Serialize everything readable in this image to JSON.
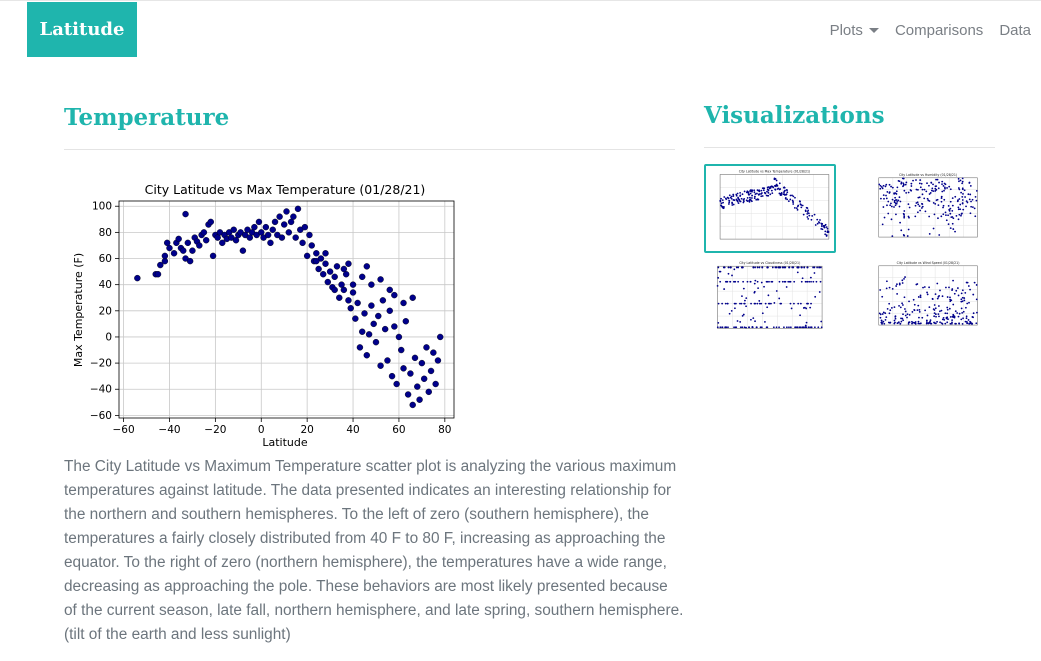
{
  "navbar": {
    "brand": "Latitude",
    "items": [
      {
        "label": "Plots",
        "dropdown": true
      },
      {
        "label": "Comparisons"
      },
      {
        "label": "Data"
      }
    ]
  },
  "main": {
    "title": "Temperature",
    "description": "The City Latitude vs Maximum Temperature scatter plot is analyzing the various maximum temperatures against latitude. The data presented indicates an interesting relationship for the northern and southern hemispheres. To the left of zero (southern hemisphere), the temperatures a fairly closely distributed from 40 F to 80 F, increasing as approaching the equator. To the right of zero (northern hemisphere), the temperatures have a wide range, decreasing as approaching the pole. These behaviors are most likely presented because of the current season, late fall, northern hemisphere, and late spring, southern hemisphere. (tilt of the earth and less sunlight)"
  },
  "sidebar": {
    "title": "Visualizations",
    "thumbnails": [
      {
        "title": "City Latitude vs Max Temperature (01/28/21)",
        "active": true
      },
      {
        "title": "City Latitude vs Humidity (01/28/21)",
        "active": false
      },
      {
        "title": "City Latitude vs Cloudiness (01/28/21)",
        "active": false
      },
      {
        "title": "City Latitude vs Wind Speed (01/28/21)",
        "active": false
      }
    ]
  },
  "colors": {
    "accent": "#1fb5ad",
    "marker": "#00008b"
  },
  "chart_data": {
    "type": "scatter",
    "title": "City Latitude vs Max Temperature (01/28/21)",
    "xlabel": "Latitude",
    "ylabel": "Max Temperature (F)",
    "xlim": [
      -62,
      84
    ],
    "ylim": [
      -62,
      104
    ],
    "xticks": [
      -60,
      -40,
      -20,
      0,
      20,
      40,
      60,
      80
    ],
    "yticks": [
      -60,
      -40,
      -20,
      0,
      20,
      40,
      60,
      80,
      100
    ],
    "xtick_labels": [
      "−60",
      "−40",
      "−20",
      "0",
      "20",
      "40",
      "60",
      "80"
    ],
    "ytick_labels": [
      "−60",
      "−40",
      "−20",
      "0",
      "20",
      "40",
      "60",
      "80",
      "100"
    ],
    "grid": true,
    "marker_color": "#00008b",
    "points": [
      [
        -54,
        45
      ],
      [
        -46,
        48
      ],
      [
        -45,
        48
      ],
      [
        -44,
        55
      ],
      [
        -42,
        58
      ],
      [
        -42,
        62
      ],
      [
        -41,
        72
      ],
      [
        -40,
        68
      ],
      [
        -38,
        64
      ],
      [
        -37,
        72
      ],
      [
        -36,
        75
      ],
      [
        -35,
        68
      ],
      [
        -34,
        66
      ],
      [
        -33,
        60
      ],
      [
        -33,
        94
      ],
      [
        -32,
        72
      ],
      [
        -31,
        58
      ],
      [
        -30,
        66
      ],
      [
        -29,
        76
      ],
      [
        -28,
        73
      ],
      [
        -27,
        70
      ],
      [
        -26,
        78
      ],
      [
        -25,
        80
      ],
      [
        -24,
        74
      ],
      [
        -23,
        86
      ],
      [
        -22,
        88
      ],
      [
        -21,
        62
      ],
      [
        -20,
        78
      ],
      [
        -19,
        76
      ],
      [
        -18,
        80
      ],
      [
        -17,
        72
      ],
      [
        -16,
        78
      ],
      [
        -15,
        75
      ],
      [
        -14,
        80
      ],
      [
        -13,
        76
      ],
      [
        -12,
        82
      ],
      [
        -11,
        74
      ],
      [
        -10,
        78
      ],
      [
        -9,
        80
      ],
      [
        -8,
        66
      ],
      [
        -7,
        78
      ],
      [
        -6,
        82
      ],
      [
        -5,
        76
      ],
      [
        -4,
        80
      ],
      [
        -3,
        84
      ],
      [
        -2,
        78
      ],
      [
        -1,
        88
      ],
      [
        0,
        80
      ],
      [
        1,
        76
      ],
      [
        2,
        84
      ],
      [
        3,
        78
      ],
      [
        4,
        72
      ],
      [
        5,
        82
      ],
      [
        6,
        88
      ],
      [
        7,
        78
      ],
      [
        8,
        92
      ],
      [
        9,
        76
      ],
      [
        10,
        86
      ],
      [
        11,
        96
      ],
      [
        12,
        80
      ],
      [
        13,
        88
      ],
      [
        14,
        92
      ],
      [
        15,
        76
      ],
      [
        16,
        98
      ],
      [
        17,
        82
      ],
      [
        18,
        72
      ],
      [
        19,
        84
      ],
      [
        20,
        62
      ],
      [
        21,
        78
      ],
      [
        22,
        70
      ],
      [
        23,
        58
      ],
      [
        24,
        64
      ],
      [
        25,
        52
      ],
      [
        26,
        60
      ],
      [
        27,
        48
      ],
      [
        28,
        56
      ],
      [
        29,
        42
      ],
      [
        30,
        50
      ],
      [
        31,
        38
      ],
      [
        32,
        46
      ],
      [
        33,
        54
      ],
      [
        34,
        30
      ],
      [
        35,
        40
      ],
      [
        36,
        36
      ],
      [
        37,
        48
      ],
      [
        38,
        28
      ],
      [
        39,
        22
      ],
      [
        40,
        34
      ],
      [
        41,
        14
      ],
      [
        42,
        26
      ],
      [
        43,
        -8
      ],
      [
        44,
        4
      ],
      [
        45,
        18
      ],
      [
        46,
        -14
      ],
      [
        47,
        2
      ],
      [
        48,
        24
      ],
      [
        49,
        10
      ],
      [
        50,
        -4
      ],
      [
        51,
        16
      ],
      [
        52,
        -22
      ],
      [
        53,
        28
      ],
      [
        54,
        6
      ],
      [
        55,
        -18
      ],
      [
        56,
        20
      ],
      [
        57,
        -30
      ],
      [
        58,
        8
      ],
      [
        59,
        -36
      ],
      [
        60,
        0
      ],
      [
        61,
        -10
      ],
      [
        62,
        -24
      ],
      [
        63,
        12
      ],
      [
        64,
        -44
      ],
      [
        65,
        -28
      ],
      [
        66,
        -52
      ],
      [
        67,
        -16
      ],
      [
        68,
        -38
      ],
      [
        69,
        -48
      ],
      [
        70,
        -20
      ],
      [
        71,
        -32
      ],
      [
        72,
        -8
      ],
      [
        73,
        -42
      ],
      [
        74,
        -26
      ],
      [
        75,
        -12
      ],
      [
        76,
        -36
      ],
      [
        77,
        -18
      ],
      [
        78,
        0
      ],
      [
        36,
        52
      ],
      [
        52,
        44
      ],
      [
        28,
        64
      ],
      [
        44,
        46
      ],
      [
        32,
        36
      ],
      [
        40,
        40
      ],
      [
        56,
        36
      ],
      [
        62,
        26
      ],
      [
        66,
        30
      ],
      [
        58,
        32
      ],
      [
        48,
        40
      ],
      [
        24,
        58
      ],
      [
        38,
        56
      ],
      [
        46,
        54
      ]
    ]
  }
}
